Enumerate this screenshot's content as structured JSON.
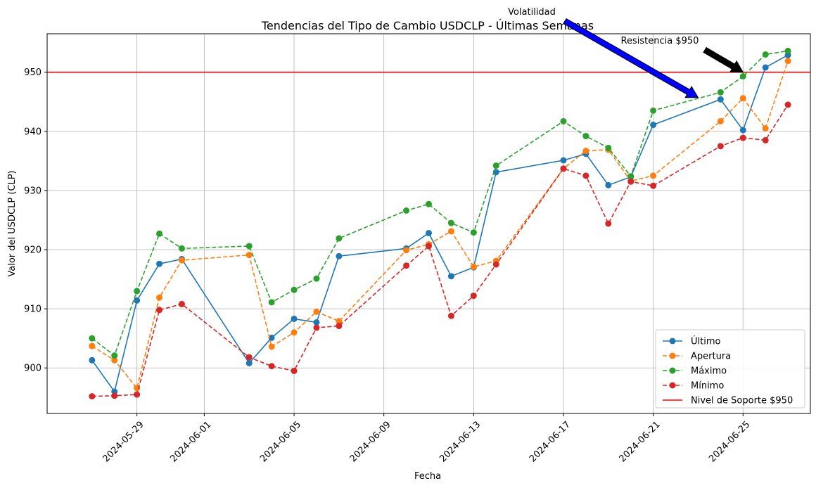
{
  "chart_data": {
    "type": "line",
    "title": "Tendencias del Tipo de Cambio USDCLP - Últimas Semanas",
    "xlabel": "Fecha",
    "ylabel": "Valor del USDCLP (CLP)",
    "xlim": [
      "2024-05-25",
      "2024-06-28"
    ],
    "ylim": [
      892.3,
      956.5
    ],
    "grid": true,
    "legend_position": "lower right",
    "x_ticks": [
      "2024-05-29",
      "2024-06-01",
      "2024-06-05",
      "2024-06-09",
      "2024-06-13",
      "2024-06-17",
      "2024-06-21",
      "2024-06-25"
    ],
    "y_ticks": [
      900,
      910,
      920,
      930,
      940,
      950
    ],
    "dates": [
      "2024-05-27",
      "2024-05-28",
      "2024-05-29",
      "2024-05-30",
      "2024-05-31",
      "2024-06-03",
      "2024-06-04",
      "2024-06-05",
      "2024-06-06",
      "2024-06-07",
      "2024-06-10",
      "2024-06-11",
      "2024-06-12",
      "2024-06-13",
      "2024-06-14",
      "2024-06-17",
      "2024-06-18",
      "2024-06-19",
      "2024-06-20",
      "2024-06-21",
      "2024-06-24",
      "2024-06-25",
      "2024-06-26",
      "2024-06-27"
    ],
    "series": [
      {
        "name": "Último",
        "color": "#1f77b4",
        "dash": false,
        "values": [
          901.3,
          896.0,
          911.4,
          917.6,
          918.4,
          900.8,
          905.1,
          908.3,
          907.7,
          918.9,
          920.2,
          922.8,
          915.5,
          917.0,
          933.1,
          935.1,
          936.2,
          930.9,
          932.3,
          941.1,
          945.4,
          940.2,
          950.8,
          952.9
        ]
      },
      {
        "name": "Apertura",
        "color": "#ff7f0e",
        "dash": true,
        "values": [
          903.7,
          901.3,
          896.6,
          911.9,
          918.2,
          919.1,
          903.6,
          906.0,
          909.5,
          907.9,
          919.9,
          920.9,
          923.1,
          917.1,
          918.1,
          933.7,
          936.7,
          936.9,
          931.6,
          932.5,
          941.7,
          945.6,
          940.5,
          951.9
        ]
      },
      {
        "name": "Máximo",
        "color": "#2ca02c",
        "dash": true,
        "values": [
          905.0,
          902.1,
          913.0,
          922.7,
          920.2,
          920.6,
          911.1,
          913.2,
          915.1,
          921.9,
          926.6,
          927.7,
          924.5,
          922.9,
          934.2,
          941.7,
          939.2,
          937.2,
          932.4,
          943.5,
          946.6,
          949.3,
          953.0,
          953.6
        ]
      },
      {
        "name": "Mínimo",
        "color": "#d62728",
        "dash": true,
        "values": [
          895.2,
          895.3,
          895.5,
          909.8,
          910.8,
          901.8,
          900.3,
          899.5,
          906.8,
          907.1,
          917.3,
          920.6,
          908.8,
          912.2,
          917.5,
          933.7,
          932.5,
          924.4,
          931.5,
          930.8,
          937.5,
          938.9,
          938.5,
          944.5
        ]
      }
    ],
    "reference_lines": [
      {
        "name": "Nivel de Soporte $950",
        "y": 950,
        "color": "#ff0000"
      }
    ],
    "annotations": [
      {
        "text": "Volatilidad",
        "color": "#0000ff",
        "edge": "#000000",
        "xy": [
          "2024-06-23",
          945.7
        ],
        "text_xy": [
          "2024-06-17",
          950
        ]
      },
      {
        "text": "Resistencia $950",
        "color": "#000000",
        "edge": "#000000",
        "xy": [
          "2024-06-25",
          950
        ],
        "text_xy": [
          "2024-06-24",
          952
        ]
      }
    ]
  }
}
